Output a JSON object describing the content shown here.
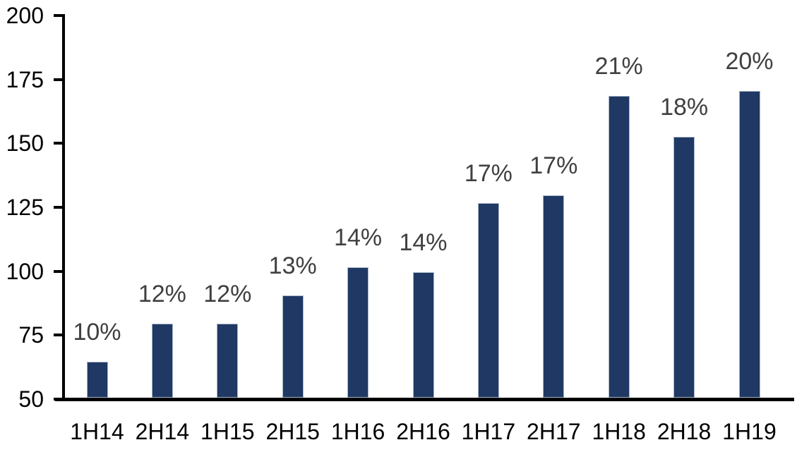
{
  "chart_data": {
    "type": "bar",
    "title": "",
    "xlabel": "",
    "ylabel": "",
    "categories": [
      "1H14",
      "2H14",
      "1H15",
      "2H15",
      "1H16",
      "2H16",
      "1H17",
      "2H17",
      "1H18",
      "2H18",
      "1H19"
    ],
    "values": [
      64,
      79,
      79,
      90,
      101,
      99,
      126,
      129,
      168,
      152,
      170
    ],
    "bar_labels": [
      "10%",
      "12%",
      "12%",
      "13%",
      "14%",
      "14%",
      "17%",
      "17%",
      "21%",
      "18%",
      "20%"
    ],
    "y_ticks": [
      50,
      75,
      100,
      125,
      150,
      175,
      200
    ],
    "ylim": [
      50,
      200
    ],
    "grid": false,
    "legend": null,
    "colors": {
      "bar_fill": "#1f3864",
      "bar_border": "#aab6c6",
      "data_label": "#404040",
      "axis": "#000000",
      "background": "#ffffff"
    }
  }
}
